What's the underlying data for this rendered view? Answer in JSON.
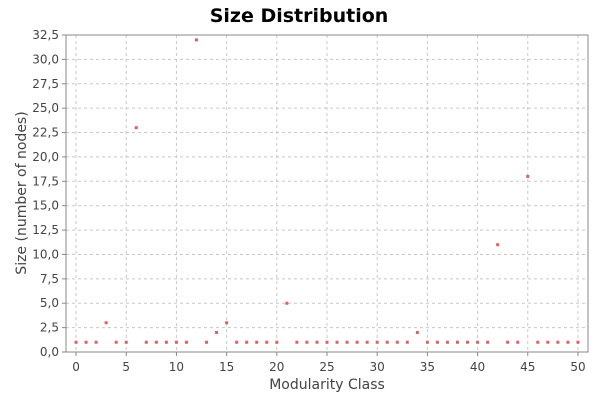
{
  "chart_data": {
    "type": "scatter",
    "title": "Size Distribution",
    "xlabel": "Modularity Class",
    "ylabel": "Size (number of nodes)",
    "xlim": [
      -1,
      51
    ],
    "ylim": [
      0,
      32.5
    ],
    "x_ticks": [
      0,
      5,
      10,
      15,
      20,
      25,
      30,
      35,
      40,
      45,
      50
    ],
    "y_ticks": [
      0,
      2.5,
      5,
      7.5,
      10,
      12.5,
      15,
      17.5,
      20,
      22.5,
      25,
      27.5,
      30,
      32.5
    ],
    "y_tick_labels": [
      "0,0",
      "2,5",
      "5,0",
      "7,5",
      "10,0",
      "12,5",
      "15,0",
      "17,5",
      "20,0",
      "22,5",
      "25,0",
      "27,5",
      "30,0",
      "32,5"
    ],
    "grid": true,
    "legend": "none",
    "marker_color": "#e06060",
    "points": [
      {
        "x": 0,
        "y": 1
      },
      {
        "x": 1,
        "y": 1
      },
      {
        "x": 2,
        "y": 1
      },
      {
        "x": 3,
        "y": 3
      },
      {
        "x": 4,
        "y": 1
      },
      {
        "x": 5,
        "y": 1
      },
      {
        "x": 6,
        "y": 23
      },
      {
        "x": 7,
        "y": 1
      },
      {
        "x": 8,
        "y": 1
      },
      {
        "x": 9,
        "y": 1
      },
      {
        "x": 10,
        "y": 1
      },
      {
        "x": 11,
        "y": 1
      },
      {
        "x": 12,
        "y": 32
      },
      {
        "x": 13,
        "y": 1
      },
      {
        "x": 14,
        "y": 2
      },
      {
        "x": 15,
        "y": 3
      },
      {
        "x": 16,
        "y": 1
      },
      {
        "x": 17,
        "y": 1
      },
      {
        "x": 18,
        "y": 1
      },
      {
        "x": 19,
        "y": 1
      },
      {
        "x": 20,
        "y": 1
      },
      {
        "x": 21,
        "y": 5
      },
      {
        "x": 22,
        "y": 1
      },
      {
        "x": 23,
        "y": 1
      },
      {
        "x": 24,
        "y": 1
      },
      {
        "x": 25,
        "y": 1
      },
      {
        "x": 26,
        "y": 1
      },
      {
        "x": 27,
        "y": 1
      },
      {
        "x": 28,
        "y": 1
      },
      {
        "x": 29,
        "y": 1
      },
      {
        "x": 30,
        "y": 1
      },
      {
        "x": 31,
        "y": 1
      },
      {
        "x": 32,
        "y": 1
      },
      {
        "x": 33,
        "y": 1
      },
      {
        "x": 34,
        "y": 2
      },
      {
        "x": 35,
        "y": 1
      },
      {
        "x": 36,
        "y": 1
      },
      {
        "x": 37,
        "y": 1
      },
      {
        "x": 38,
        "y": 1
      },
      {
        "x": 39,
        "y": 1
      },
      {
        "x": 40,
        "y": 1
      },
      {
        "x": 41,
        "y": 1
      },
      {
        "x": 42,
        "y": 11
      },
      {
        "x": 43,
        "y": 1
      },
      {
        "x": 44,
        "y": 1
      },
      {
        "x": 45,
        "y": 18
      },
      {
        "x": 46,
        "y": 1
      },
      {
        "x": 47,
        "y": 1
      },
      {
        "x": 48,
        "y": 1
      },
      {
        "x": 49,
        "y": 1
      },
      {
        "x": 50,
        "y": 1
      }
    ]
  }
}
